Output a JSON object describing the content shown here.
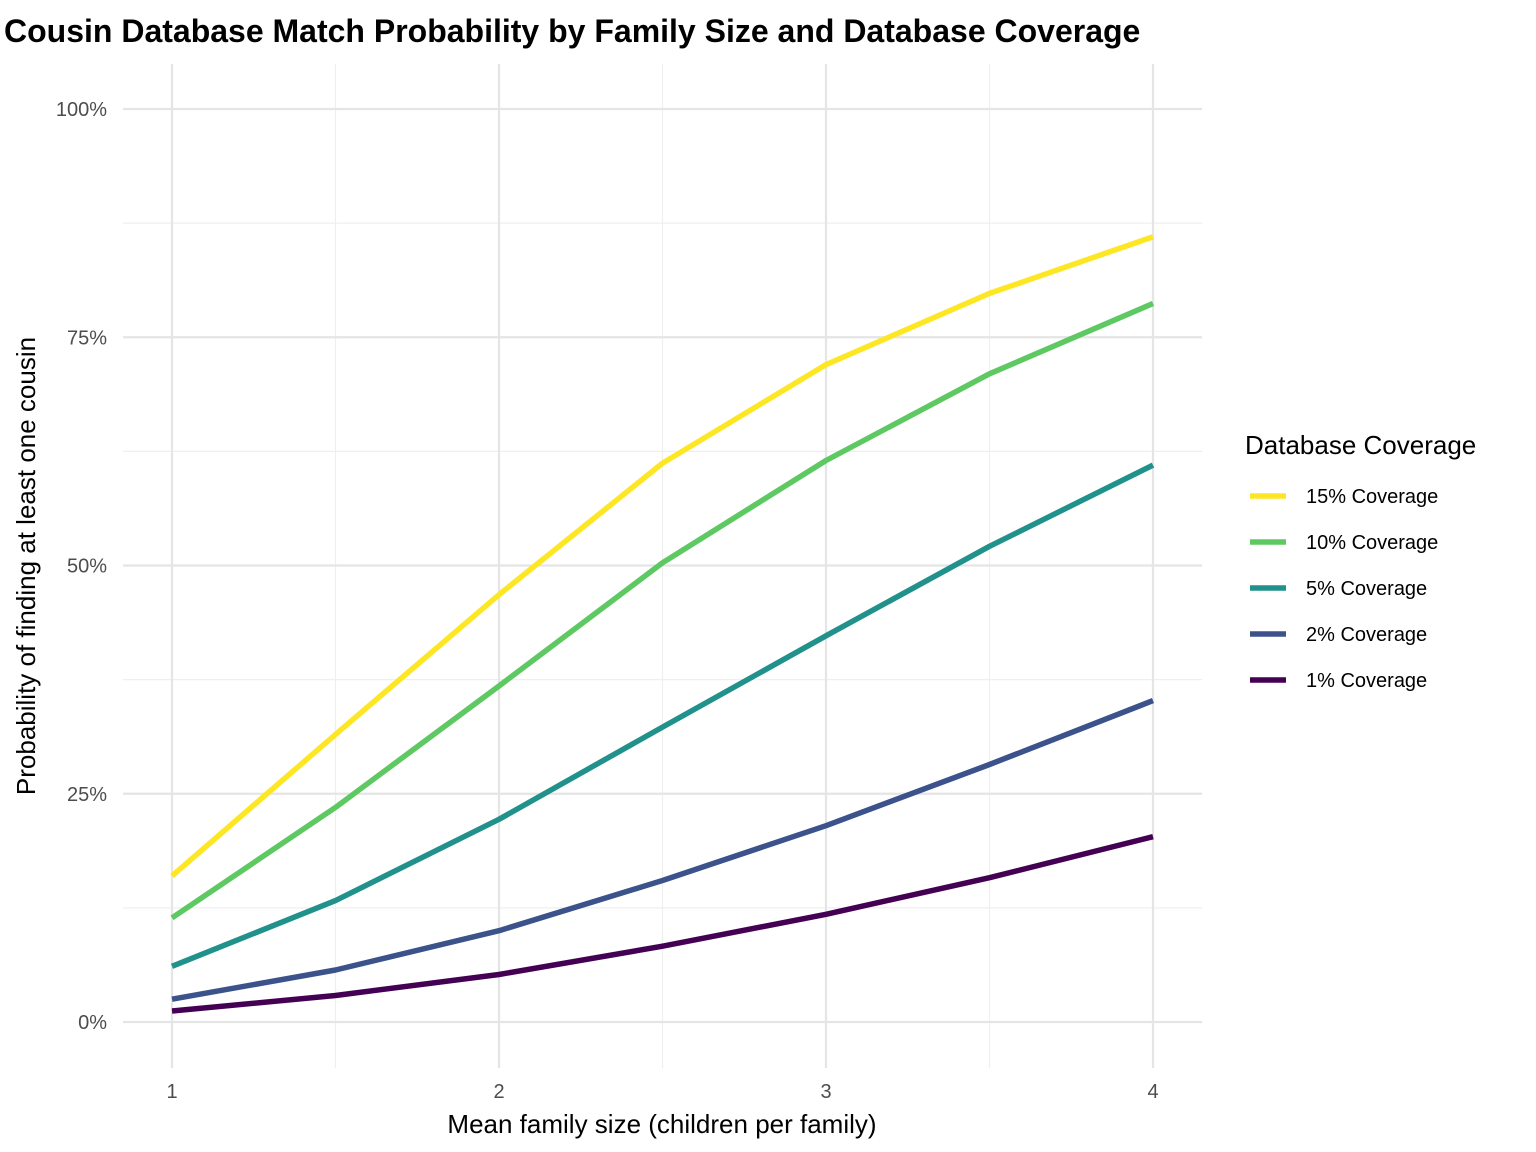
{
  "chart_data": {
    "type": "line",
    "title": "Cousin Database Match Probability by Family Size and Database Coverage",
    "xlabel": "Mean family size (children per family)",
    "ylabel": "Probability of finding at least one cousin",
    "x": [
      1,
      1.5,
      2,
      2.5,
      3,
      3.5,
      4
    ],
    "xlim": [
      0.87,
      4.15
    ],
    "ylim": [
      -0.05,
      1.05
    ],
    "x_ticks": [
      1,
      2,
      3,
      4
    ],
    "x_tick_labels": [
      "1",
      "2",
      "3",
      "4"
    ],
    "y_ticks": [
      0,
      0.25,
      0.5,
      0.75,
      1.0
    ],
    "y_tick_labels": [
      "0%",
      "25%",
      "50%",
      "75%",
      "100%"
    ],
    "grid": true,
    "legend": {
      "title": "Database Coverage",
      "position": "right"
    },
    "series": [
      {
        "name": "15% Coverage",
        "color": "#FDE725",
        "values": [
          0.16,
          0.315,
          0.468,
          0.612,
          0.72,
          0.798,
          0.86
        ]
      },
      {
        "name": "10% Coverage",
        "color": "#5EC962",
        "values": [
          0.114,
          0.235,
          0.368,
          0.503,
          0.615,
          0.71,
          0.787
        ]
      },
      {
        "name": "5% Coverage",
        "color": "#21918C",
        "values": [
          0.061,
          0.133,
          0.222,
          0.323,
          0.423,
          0.521,
          0.61
        ]
      },
      {
        "name": "2% Coverage",
        "color": "#3B528B",
        "values": [
          0.025,
          0.057,
          0.1,
          0.155,
          0.215,
          0.282,
          0.352
        ]
      },
      {
        "name": "1% Coverage",
        "color": "#440154",
        "values": [
          0.012,
          0.029,
          0.052,
          0.083,
          0.118,
          0.158,
          0.203
        ]
      }
    ]
  }
}
